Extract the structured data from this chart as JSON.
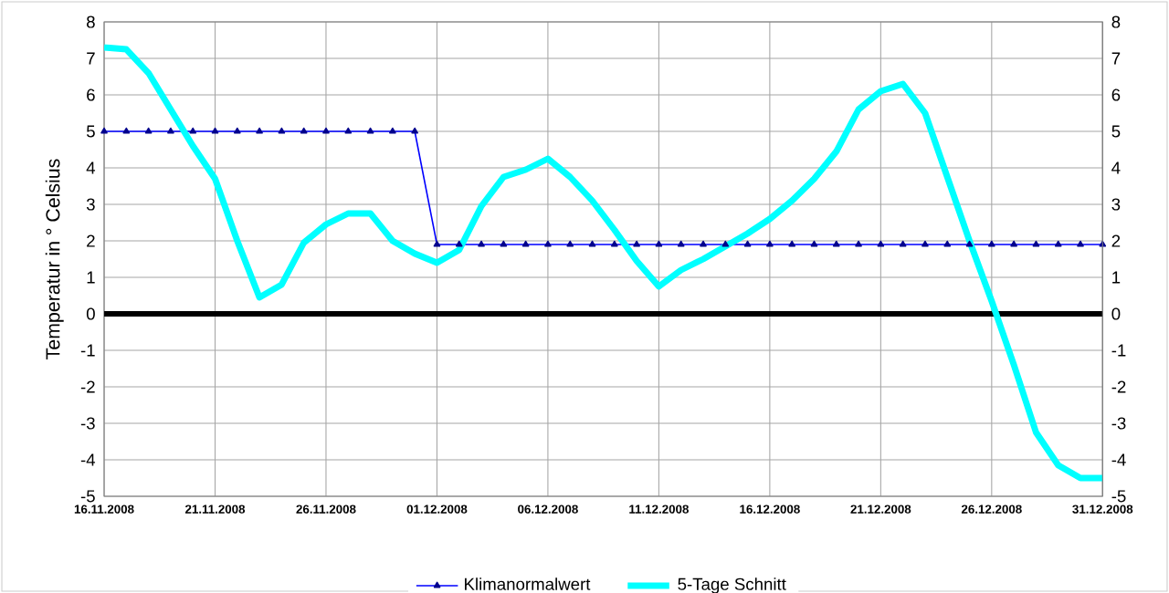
{
  "chart_data": {
    "type": "line",
    "ylabel": "Temperatur in ° Celsius",
    "x": [
      "2008-11-16",
      "2008-11-17",
      "2008-11-18",
      "2008-11-19",
      "2008-11-20",
      "2008-11-21",
      "2008-11-22",
      "2008-11-23",
      "2008-11-24",
      "2008-11-25",
      "2008-11-26",
      "2008-11-27",
      "2008-11-28",
      "2008-11-29",
      "2008-11-30",
      "2008-12-01",
      "2008-12-02",
      "2008-12-03",
      "2008-12-04",
      "2008-12-05",
      "2008-12-06",
      "2008-12-07",
      "2008-12-08",
      "2008-12-09",
      "2008-12-10",
      "2008-12-11",
      "2008-12-12",
      "2008-12-13",
      "2008-12-14",
      "2008-12-15",
      "2008-12-16",
      "2008-12-17",
      "2008-12-18",
      "2008-12-19",
      "2008-12-20",
      "2008-12-21",
      "2008-12-22",
      "2008-12-23",
      "2008-12-24",
      "2008-12-25",
      "2008-12-26",
      "2008-12-27",
      "2008-12-28",
      "2008-12-29",
      "2008-12-30",
      "2008-12-31"
    ],
    "series": [
      {
        "name": "Klimanormalwert",
        "color": "#0000ff",
        "marker": "triangle",
        "values": [
          5,
          5,
          5,
          5,
          5,
          5,
          5,
          5,
          5,
          5,
          5,
          5,
          5,
          5,
          5,
          1.9,
          1.9,
          1.9,
          1.9,
          1.9,
          1.9,
          1.9,
          1.9,
          1.9,
          1.9,
          1.9,
          1.9,
          1.9,
          1.9,
          1.9,
          1.9,
          1.9,
          1.9,
          1.9,
          1.9,
          1.9,
          1.9,
          1.9,
          1.9,
          1.9,
          1.9,
          1.9,
          1.9,
          1.9,
          1.9,
          1.9
        ]
      },
      {
        "name": "5-Tage Schnitt",
        "color": "#00ffff",
        "marker": "none",
        "values": [
          7.3,
          7.25,
          6.6,
          5.6,
          4.6,
          3.7,
          2.0,
          0.45,
          0.8,
          1.95,
          2.45,
          2.75,
          2.75,
          2.0,
          1.65,
          1.4,
          1.75,
          2.95,
          3.75,
          3.95,
          4.25,
          3.75,
          3.1,
          2.3,
          1.45,
          0.75,
          1.2,
          1.5,
          1.85,
          2.2,
          2.6,
          3.1,
          3.7,
          4.45,
          5.6,
          6.1,
          6.3,
          5.5,
          3.75,
          2.0,
          0.35,
          -1.4,
          -3.25,
          -4.15,
          -4.5,
          -4.5
        ]
      }
    ],
    "xlim": [
      "2008-11-16",
      "2008-12-31"
    ],
    "xticks": [
      {
        "value": "2008-11-16",
        "label": "16.11.2008"
      },
      {
        "value": "2008-11-21",
        "label": "21.11.2008"
      },
      {
        "value": "2008-11-26",
        "label": "26.11.2008"
      },
      {
        "value": "2008-12-01",
        "label": "01.12.2008"
      },
      {
        "value": "2008-12-06",
        "label": "06.12.2008"
      },
      {
        "value": "2008-12-11",
        "label": "11.12.2008"
      },
      {
        "value": "2008-12-16",
        "label": "16.12.2008"
      },
      {
        "value": "2008-12-21",
        "label": "21.12.2008"
      },
      {
        "value": "2008-12-26",
        "label": "26.12.2008"
      },
      {
        "value": "2008-12-31",
        "label": "31.12.2008"
      }
    ],
    "ylim": [
      -5,
      8
    ],
    "yticks": [
      -5,
      -4,
      -3,
      -2,
      -1,
      0,
      1,
      2,
      3,
      4,
      5,
      6,
      7,
      8
    ],
    "y2lim": [
      -5,
      8
    ],
    "y2ticks": [
      -5,
      -4,
      -3,
      -2,
      -1,
      0,
      1,
      2,
      3,
      4,
      5,
      6,
      7,
      8
    ],
    "ref_lines": [
      {
        "axis": "y",
        "value": 0,
        "color": "#000000"
      }
    ],
    "grid": true,
    "legend": "bottom",
    "line_style": "solid"
  }
}
